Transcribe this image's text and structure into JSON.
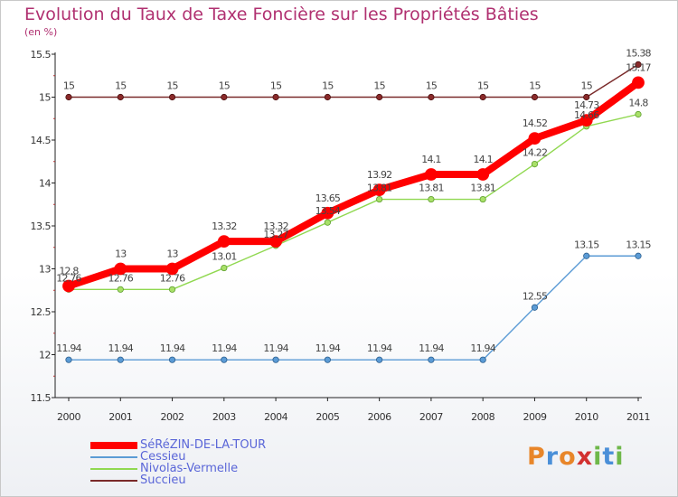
{
  "title": "Evolution du Taux de Taxe Foncière sur les Propriétés Bâties",
  "subtitle": "(en %)",
  "logo_text": "Proxiti",
  "chart_data": {
    "type": "line",
    "title": "Evolution du Taux de Taxe Foncière sur les Propriétés Bâties",
    "ylabel": "(en %)",
    "xlabel": "",
    "x": [
      "2000",
      "2001",
      "2002",
      "2003",
      "2004",
      "2005",
      "2006",
      "2007",
      "2008",
      "2009",
      "2010",
      "2011"
    ],
    "ylim": [
      11.5,
      15.5
    ],
    "yticks": [
      "11.5",
      "12",
      "12.5",
      "13",
      "13.5",
      "14",
      "14.5",
      "15",
      "15.5"
    ],
    "legend_position": "bottom-left",
    "series": [
      {
        "name": "SéRéZIN-DE-LA-TOUR",
        "color": "#ff0000",
        "values": [
          12.8,
          13,
          13,
          13.32,
          13.32,
          13.65,
          13.92,
          14.1,
          14.1,
          14.52,
          14.73,
          15.17
        ],
        "labels": [
          "12.8",
          "13",
          "13",
          "13.32",
          "13.32",
          "13.65",
          "13.92",
          "14.1",
          "14.1",
          "14.52",
          "14.73",
          "15.17"
        ]
      },
      {
        "name": "Cessieu",
        "color": "#5b9bd5",
        "values": [
          11.94,
          11.94,
          11.94,
          11.94,
          11.94,
          11.94,
          11.94,
          11.94,
          11.94,
          12.55,
          13.15,
          13.15
        ],
        "labels": [
          "11.94",
          "11.94",
          "11.94",
          "11.94",
          "11.94",
          "11.94",
          "11.94",
          "11.94",
          "11.94",
          "12.55",
          "13.15",
          "13.15"
        ]
      },
      {
        "name": "Nivolas-Vermelle",
        "color": "#90d850",
        "values": [
          12.76,
          12.76,
          12.76,
          13.01,
          13.27,
          13.54,
          13.81,
          13.81,
          13.81,
          14.22,
          14.66,
          14.8
        ],
        "labels": [
          "12.76",
          "12.76",
          "12.76",
          "13.01",
          "13.27",
          "13.54",
          "13.81",
          "13.81",
          "13.81",
          "14.22",
          "14.66",
          "14.8"
        ]
      },
      {
        "name": "Succieu",
        "color": "#7a2a2a",
        "values": [
          15,
          15,
          15,
          15,
          15,
          15,
          15,
          15,
          15,
          15,
          15,
          15.38
        ],
        "labels": [
          "15",
          "15",
          "15",
          "15",
          "15",
          "15",
          "15",
          "15",
          "15",
          "15",
          "15",
          "15.38"
        ]
      }
    ]
  }
}
